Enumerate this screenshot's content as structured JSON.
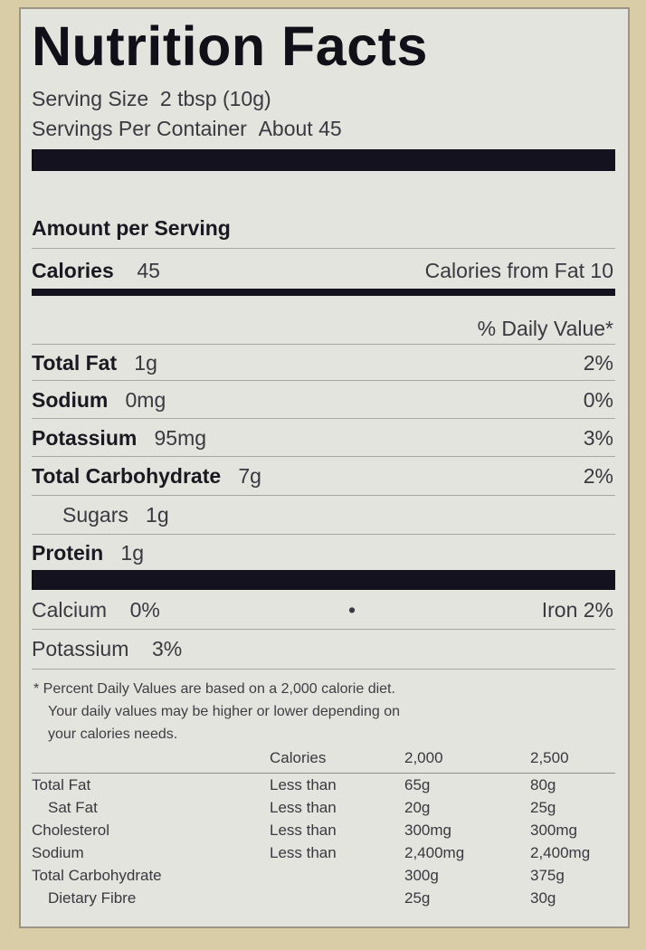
{
  "title": "Nutrition Facts",
  "serving_size_label": "Serving Size",
  "serving_size": "2 tbsp (10g)",
  "servings_label": "Servings Per Container",
  "servings": "About 45",
  "amount_per_serving": "Amount per Serving",
  "calories_label": "Calories",
  "calories": "45",
  "calories_from_fat": "Calories from Fat 10",
  "daily_value_header": "% Daily Value*",
  "nutrients": [
    {
      "name": "Total Fat",
      "amount": "1g",
      "dv": "2%"
    },
    {
      "name": "Sodium",
      "amount": "0mg",
      "dv": "0%"
    },
    {
      "name": "Potassium",
      "amount": "95mg",
      "dv": "3%"
    },
    {
      "name": "Total Carbohydrate",
      "amount": "7g",
      "dv": "2%"
    },
    {
      "name": "Sugars",
      "amount": "1g",
      "dv": ""
    },
    {
      "name": "Protein",
      "amount": "1g",
      "dv": ""
    }
  ],
  "minerals": {
    "calcium_label": "Calcium",
    "calcium": "0%",
    "separator": "•",
    "iron": "Iron 2%",
    "potassium_label": "Potassium",
    "potassium": "3%"
  },
  "footnote": [
    "* Percent Daily Values are based on a 2,000 calorie diet.",
    "Your daily values may be higher or lower depending on",
    "your calories needs."
  ],
  "reference_table": {
    "headers": [
      "",
      "Calories",
      "2,000",
      "2,500"
    ],
    "rows": [
      [
        "Total Fat",
        "Less than",
        "65g",
        "80g"
      ],
      [
        "Sat Fat",
        "Less than",
        "20g",
        "25g"
      ],
      [
        "Cholesterol",
        "Less than",
        "300mg",
        "300mg"
      ],
      [
        "Sodium",
        "Less than",
        "2,400mg",
        "2,400mg"
      ],
      [
        "Total Carbohydrate",
        "",
        "300g",
        "375g"
      ],
      [
        "Dietary Fibre",
        "",
        "25g",
        "30g"
      ]
    ]
  }
}
